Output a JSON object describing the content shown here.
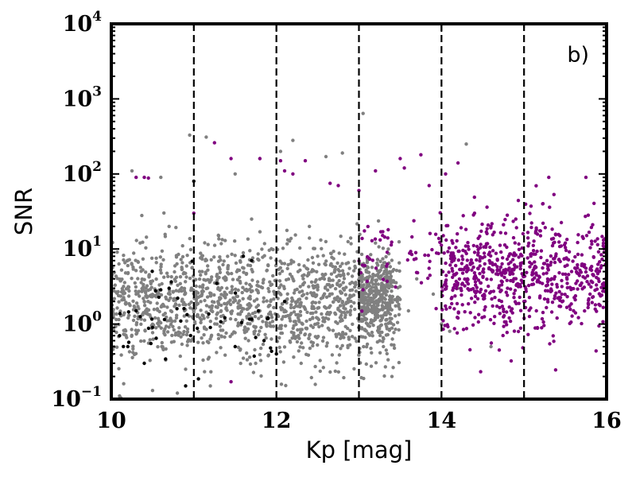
{
  "chart_data": {
    "type": "scatter",
    "title": "",
    "panel_label": "b)",
    "xlabel": "Kp [mag]",
    "ylabel": "SNR",
    "xlim": [
      10,
      16
    ],
    "ylim": [
      0.1,
      10000
    ],
    "yscale": "log",
    "x_ticks": [
      "10",
      "12",
      "14",
      "16"
    ],
    "y_ticks": [
      {
        "base": "10",
        "exp": "−1",
        "value": 0.1
      },
      {
        "base": "10",
        "exp": "0",
        "value": 1
      },
      {
        "base": "10",
        "exp": "1",
        "value": 10
      },
      {
        "base": "10",
        "exp": "2",
        "value": 100
      },
      {
        "base": "10",
        "exp": "3",
        "value": 1000
      },
      {
        "base": "10",
        "exp": "4",
        "value": 10000
      }
    ],
    "vertical_lines": [
      11,
      12,
      13,
      14,
      15
    ],
    "grid": false,
    "colors": {
      "gray": "#808080",
      "purple": "#800080",
      "black": "#000000"
    },
    "series": [
      {
        "color": "gray",
        "points": [
          [
            10.25,
            110
          ],
          [
            10.95,
            330
          ],
          [
            11.15,
            310
          ],
          [
            12.05,
            200
          ],
          [
            12.2,
            280
          ],
          [
            12.8,
            190
          ],
          [
            13.05,
            640
          ],
          [
            14.3,
            250
          ],
          [
            11.8,
            160
          ],
          [
            12.6,
            170
          ],
          [
            10.6,
            90
          ],
          [
            11.5,
            100
          ],
          [
            10.35,
            12
          ],
          [
            10.7,
            20
          ],
          [
            11.3,
            15
          ],
          [
            11.7,
            25
          ],
          [
            12.4,
            20
          ],
          [
            12.9,
            14
          ],
          [
            13.2,
            12
          ],
          [
            10.1,
            0.11
          ],
          [
            10.5,
            0.13
          ],
          [
            10.8,
            0.12
          ],
          [
            11.2,
            0.15
          ],
          [
            12.3,
            0.3
          ],
          [
            13.4,
            0.2
          ],
          [
            14.6,
            0.5
          ],
          [
            10.9,
            0.25
          ],
          [
            11.6,
            0.35
          ],
          [
            11.1,
            5
          ],
          [
            11.4,
            3
          ],
          [
            11.9,
            6
          ],
          [
            12.2,
            4
          ],
          [
            12.5,
            8
          ],
          [
            12.8,
            2
          ],
          [
            13.3,
            3
          ],
          [
            10.4,
            2
          ],
          [
            10.2,
            6
          ],
          [
            11.8,
            1.5
          ],
          [
            12.6,
            1.2
          ],
          [
            13.6,
            1.5
          ],
          [
            13.9,
            2.5
          ],
          [
            14.2,
            3
          ],
          [
            14.0,
            1.0
          ],
          [
            14.1,
            0.8
          ],
          [
            13.7,
            4
          ]
        ]
      },
      {
        "color": "purple",
        "points": [
          [
            10.3,
            90
          ],
          [
            10.4,
            90
          ],
          [
            10.45,
            88
          ],
          [
            11.0,
            30
          ],
          [
            11.25,
            260
          ],
          [
            11.45,
            160
          ],
          [
            11.8,
            160
          ],
          [
            12.05,
            150
          ],
          [
            12.1,
            110
          ],
          [
            12.2,
            100
          ],
          [
            12.35,
            150
          ],
          [
            12.65,
            75
          ],
          [
            12.75,
            70
          ],
          [
            13.0,
            60
          ],
          [
            13.2,
            110
          ],
          [
            13.5,
            160
          ],
          [
            13.55,
            120
          ],
          [
            13.75,
            180
          ],
          [
            13.85,
            70
          ],
          [
            14.05,
            100
          ],
          [
            14.2,
            140
          ],
          [
            15.3,
            90
          ],
          [
            15.75,
            90
          ],
          [
            14.7,
            0.45
          ],
          [
            11.45,
            0.17
          ],
          [
            14.4,
            30
          ],
          [
            14.6,
            20
          ],
          [
            14.9,
            25
          ],
          [
            15.2,
            15
          ],
          [
            15.5,
            12
          ],
          [
            15.7,
            6
          ],
          [
            15.9,
            4
          ],
          [
            16.0,
            2
          ],
          [
            14.25,
            8
          ],
          [
            14.5,
            5
          ],
          [
            14.8,
            3
          ],
          [
            15.0,
            2
          ],
          [
            15.15,
            1.5
          ],
          [
            15.4,
            1.2
          ],
          [
            15.6,
            1.5
          ],
          [
            15.8,
            2.5
          ]
        ]
      },
      {
        "color": "black",
        "points": [
          [
            10.1,
            0.7
          ],
          [
            10.3,
            1.5
          ],
          [
            10.5,
            0.9
          ],
          [
            10.7,
            3
          ],
          [
            10.9,
            0.15
          ],
          [
            11.0,
            80
          ],
          [
            11.2,
            0.9
          ],
          [
            11.5,
            0.5
          ],
          [
            11.7,
            7
          ],
          [
            11.9,
            1.2
          ],
          [
            12.0,
            0.4
          ],
          [
            12.1,
            2
          ],
          [
            10.2,
            0.5
          ],
          [
            10.4,
            0.3
          ],
          [
            11.6,
            8
          ],
          [
            11.85,
            0.6
          ]
        ]
      }
    ],
    "bulk_clouds": [
      {
        "color": "gray",
        "x_range": [
          10.0,
          13.5
        ],
        "y_center_log": 0.28,
        "y_sigma_log": 0.38,
        "count": 1500
      },
      {
        "color": "gray",
        "x_range": [
          13.0,
          13.4
        ],
        "y_center_log": 0.35,
        "y_sigma_log": 0.25,
        "count": 250
      },
      {
        "color": "purple",
        "x_range": [
          13.0,
          14.0
        ],
        "y_center_log": 0.9,
        "y_sigma_log": 0.3,
        "count": 60
      },
      {
        "color": "purple",
        "x_range": [
          14.0,
          16.0
        ],
        "y_center_log": 0.65,
        "y_sigma_log": 0.38,
        "count": 700
      },
      {
        "color": "black",
        "x_range": [
          10.0,
          12.0
        ],
        "y_center_log": 0.1,
        "y_sigma_log": 0.4,
        "count": 40
      }
    ]
  }
}
